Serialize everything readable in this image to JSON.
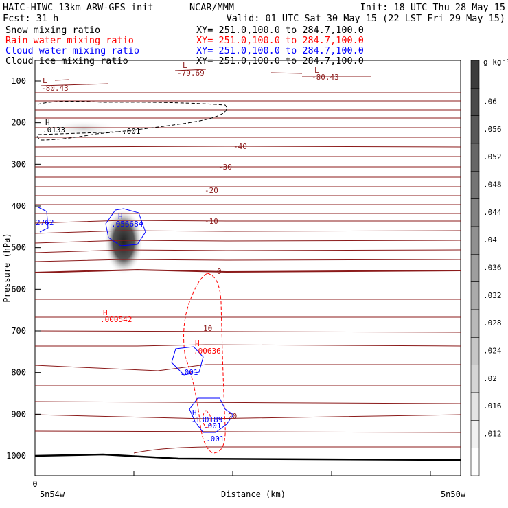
{
  "header": {
    "title_left": "HAIC-HIWC 13km ARW-GFS init",
    "org": "NCAR/MMM",
    "init": "Init: 18 UTC Thu 28 May 15",
    "fcst": "Fcst:   31 h",
    "valid": "Valid: 01 UTC Sat 30 May 15 (22 LST Fri 29 May 15)"
  },
  "fields": [
    {
      "name": "Snow mixing ratio",
      "xy": "XY= 251.0,100.0 to 284.7,100.0",
      "color": "#000000"
    },
    {
      "name": "Rain water mixing ratio",
      "xy": "XY= 251.0,100.0 to 284.7,100.0",
      "color": "#ff0000"
    },
    {
      "name": "Cloud water mixing ratio",
      "xy": "XY= 251.0,100.0 to 284.7,100.0",
      "color": "#0000ff"
    },
    {
      "name": "Cloud ice mixing ratio",
      "xy": "XY= 251.0,100.0 to 284.7,100.0",
      "color": "#000000"
    }
  ],
  "axes": {
    "ylabel": "Pressure (hPa)",
    "xlabel": "Distance (km)",
    "x_origin_label": "0",
    "x_left_label": "5n54w",
    "x_right_label": "5n50w"
  },
  "colorbar": {
    "unit": "g kg⁻¹",
    "ticks": [
      ".06",
      ".056",
      ".052",
      ".048",
      ".044",
      ".04",
      ".036",
      ".032",
      ".028",
      ".024",
      ".02",
      ".016",
      ".012"
    ]
  },
  "annotations": {
    "temp_labels": [
      "-40",
      "-30",
      "-20",
      "-10",
      "0",
      "10",
      "20"
    ],
    "low_left": "L",
    "low_left_val": "-80.43",
    "low_mid": "L",
    "low_mid_val": "-79.69",
    "low_right": "L",
    "low_right_val": "-80.43",
    "ice_high": "H",
    "ice_high_val": ".0133",
    "ice_contour": ".001",
    "cw_left_val": "2762",
    "cw_high": "H",
    "cw_high_val": ".056684",
    "rain_high_left": "H",
    "rain_high_left_val": ".000542",
    "rain_high_mid": "H",
    "rain_high_mid_val": ".00636",
    "cw_mid_contour": ".001",
    "low_cloud_high": "H",
    "low_cloud_val": ".130189",
    "low_cloud_c1": ".001",
    "low_cloud_c2": ".001"
  },
  "colors": {
    "temperature": "#8b1a1a",
    "rain": "#ff0000",
    "cloud_water": "#0000ff",
    "snow": "#000000"
  },
  "chart_data": {
    "type": "cross-section",
    "y_scale": "pressure",
    "y_ticks": [
      100,
      200,
      300,
      400,
      500,
      600,
      700,
      800,
      900,
      1000
    ],
    "ylim": [
      1050,
      70
    ],
    "temperature_contours_labeled": [
      -40,
      -30,
      -20,
      -10,
      0,
      10,
      20
    ],
    "colorbar_range": [
      0.008,
      0.064
    ],
    "maxima": [
      {
        "field": "cloud water",
        "value": 0.056684
      },
      {
        "field": "snow",
        "value": 0.0133
      },
      {
        "field": "rain",
        "value": 0.000542
      },
      {
        "field": "rain",
        "value": 0.00636
      },
      {
        "field": "cloud water",
        "value": 0.130189
      }
    ],
    "minima": [
      {
        "field": "temperature",
        "value": -80.43
      },
      {
        "field": "temperature",
        "value": -79.69
      },
      {
        "field": "temperature",
        "value": -80.43
      }
    ],
    "grid": false,
    "legend": "colorbar-right"
  }
}
